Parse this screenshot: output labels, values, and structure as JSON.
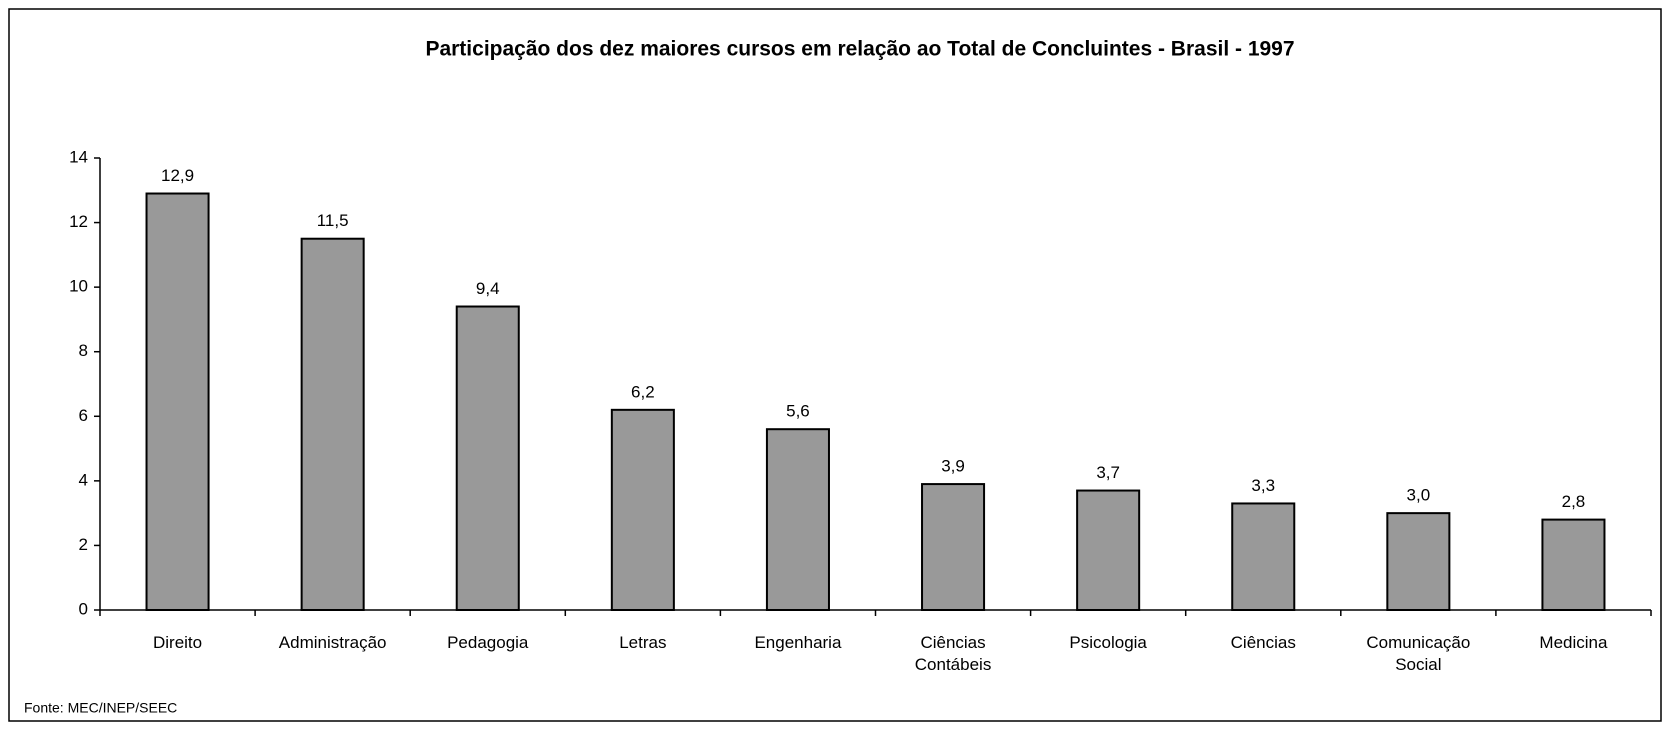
{
  "chart_data": {
    "type": "bar",
    "title": "Participação dos dez maiores cursos em relação ao Total de Concluintes - Brasil - 1997",
    "categories": [
      "Direito",
      "Administração",
      "Pedagogia",
      "Letras",
      "Engenharia",
      "Ciências Contábeis",
      "Psicologia",
      "Ciências",
      "Comunicação Social",
      "Medicina"
    ],
    "values": [
      12.9,
      11.5,
      9.4,
      6.2,
      5.6,
      3.9,
      3.7,
      3.3,
      3.0,
      2.8
    ],
    "value_labels": [
      "12,9",
      "11,5",
      "9,4",
      "6,2",
      "5,6",
      "3,9",
      "3,7",
      "3,3",
      "3,0",
      "2,8"
    ],
    "color": "#999999",
    "ylim": [
      0,
      14
    ],
    "yticks": [
      0,
      2,
      4,
      6,
      8,
      10,
      12,
      14
    ],
    "grid": false,
    "source": "Fonte: MEC/INEP/SEEC"
  }
}
